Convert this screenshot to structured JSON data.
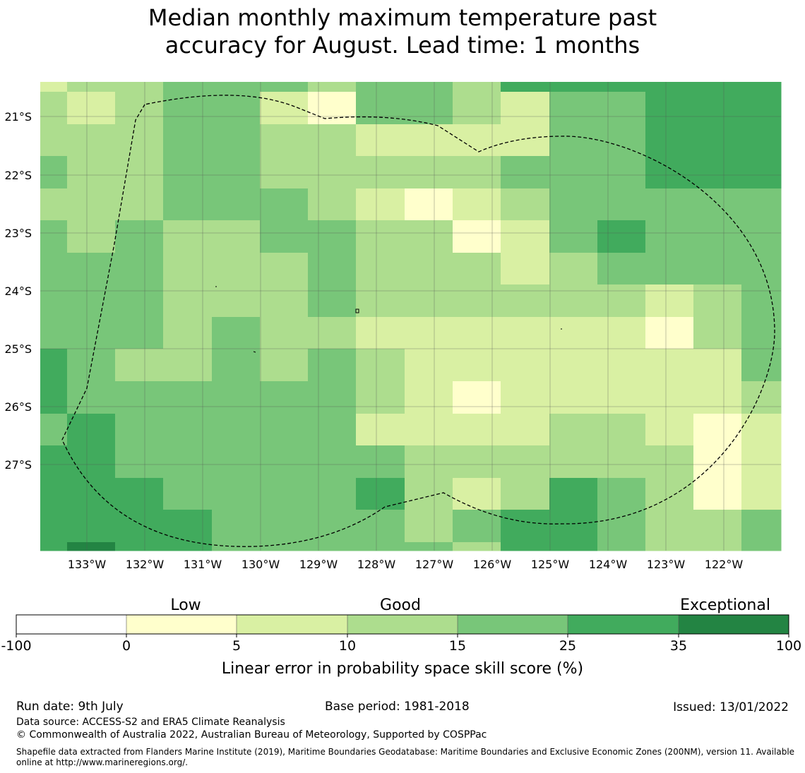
{
  "title_line1": "Median monthly maximum temperature past",
  "title_line2": "accuracy for August. Lead time: 1 months",
  "map": {
    "lat_labels": [
      "21°S",
      "22°S",
      "23°S",
      "24°S",
      "25°S",
      "26°S",
      "27°S"
    ],
    "lon_labels": [
      "133°W",
      "132°W",
      "131°W",
      "130°W",
      "129°W",
      "128°W",
      "127°W",
      "126°W",
      "125°W",
      "124°W",
      "123°W",
      "122°W"
    ],
    "grid_classes": [
      [
        2,
        3,
        3,
        4,
        4,
        4,
        3,
        4,
        4,
        3,
        5,
        5,
        5,
        5,
        5,
        5
      ],
      [
        3,
        2,
        3,
        4,
        4,
        2,
        1,
        4,
        4,
        3,
        2,
        4,
        4,
        5,
        5,
        5
      ],
      [
        3,
        3,
        3,
        4,
        4,
        3,
        3,
        2,
        2,
        2,
        2,
        4,
        4,
        5,
        5,
        5
      ],
      [
        4,
        3,
        3,
        4,
        4,
        3,
        3,
        3,
        3,
        3,
        4,
        4,
        4,
        5,
        5,
        5
      ],
      [
        3,
        3,
        3,
        4,
        4,
        4,
        3,
        2,
        1,
        2,
        3,
        4,
        4,
        4,
        4,
        4
      ],
      [
        4,
        3,
        4,
        3,
        3,
        4,
        4,
        3,
        3,
        1,
        2,
        4,
        5,
        4,
        4,
        4
      ],
      [
        4,
        4,
        4,
        3,
        3,
        3,
        4,
        3,
        3,
        3,
        2,
        3,
        4,
        4,
        4,
        4
      ],
      [
        4,
        4,
        4,
        3,
        3,
        3,
        4,
        3,
        3,
        3,
        3,
        3,
        3,
        2,
        3,
        4
      ],
      [
        4,
        4,
        4,
        3,
        4,
        3,
        3,
        2,
        2,
        2,
        2,
        2,
        2,
        1,
        3,
        4
      ],
      [
        5,
        4,
        3,
        3,
        4,
        3,
        4,
        3,
        2,
        2,
        2,
        2,
        2,
        2,
        2,
        4
      ],
      [
        5,
        4,
        4,
        4,
        4,
        4,
        4,
        3,
        2,
        1,
        2,
        2,
        2,
        2,
        2,
        3
      ],
      [
        4,
        5,
        4,
        4,
        4,
        4,
        4,
        2,
        2,
        2,
        2,
        3,
        3,
        2,
        1,
        2
      ],
      [
        5,
        5,
        4,
        4,
        4,
        4,
        4,
        4,
        3,
        3,
        3,
        3,
        3,
        3,
        1,
        2
      ],
      [
        5,
        5,
        5,
        4,
        4,
        4,
        4,
        5,
        3,
        2,
        3,
        5,
        4,
        3,
        1,
        2
      ],
      [
        5,
        5,
        5,
        5,
        4,
        4,
        4,
        4,
        3,
        4,
        5,
        5,
        4,
        3,
        3,
        4
      ],
      [
        5,
        6,
        5,
        5,
        4,
        4,
        4,
        4,
        4,
        3,
        5,
        5,
        4,
        3,
        3,
        4
      ]
    ]
  },
  "legend": {
    "labels_top": [
      "Low",
      "Good",
      "Exceptional"
    ],
    "ticks": [
      "-100",
      "0",
      "5",
      "10",
      "15",
      "25",
      "35",
      "100"
    ],
    "colors": [
      "#ffffff",
      "#ffffcc",
      "#d9f0a3",
      "#addd8e",
      "#78c679",
      "#41ab5d",
      "#238443"
    ],
    "axis_label": "Linear error in probability space skill score (%)"
  },
  "footer": {
    "run_date": "Run date: 9th July",
    "base_period": "Base period: 1981-2018",
    "issued": "Issued: 13/01/2022",
    "data_source": "Data source: ACCESS-S2 and ERA5 Climate Reanalysis",
    "copyright": "© Commonwealth of Australia 2022, Australian Bureau of Meteorology, Supported by COSPPac",
    "shapefile": "Shapefile data extracted from Flanders Marine Institute (2019), Maritime Boundaries Geodatabase: Maritime Boundaries and Exclusive Economic Zones (200NM), version 11. Available online at http://www.marineregions.org/."
  }
}
